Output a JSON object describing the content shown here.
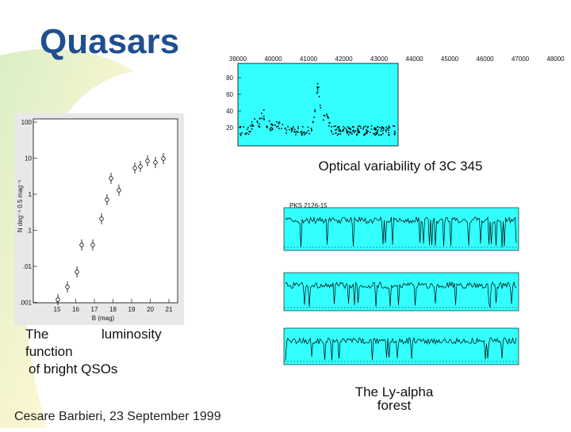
{
  "title": "Quasars",
  "variability": {
    "x_labels": [
      "39000",
      "40000",
      "41000",
      "42000",
      "43000",
      "44000",
      "45000",
      "46000",
      "47000",
      "48000"
    ],
    "y_labels": [
      "80",
      "60",
      "40",
      "20"
    ],
    "caption": "Optical variability of 3C 345"
  },
  "luminosity": {
    "y_labels": [
      "100",
      "10",
      "1",
      ".1",
      ".01",
      ".001"
    ],
    "x_labels": [
      "15",
      "16",
      "17",
      "18",
      "19",
      "20",
      "21"
    ],
    "x_axis_label": "B (mag)",
    "y_axis_label": "N deg⁻¹ 0.5 mag⁻¹",
    "caption_lines": [
      "The luminosity",
      "function",
      "of bright QSOs"
    ]
  },
  "spectra": {
    "object_label": "PKS 2126-15",
    "caption_lines": [
      "The Ly-alpha",
      "forest"
    ]
  },
  "footer": "Cesare Barbieri, 23 September 1999"
}
